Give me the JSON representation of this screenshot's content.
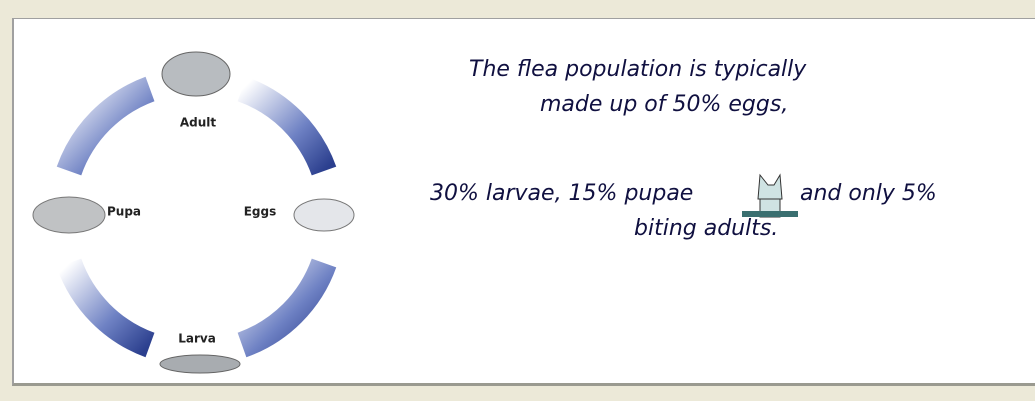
{
  "diagram": {
    "labels": {
      "adult": "Adult",
      "eggs": "Eggs",
      "larva": "Larva",
      "pupa": "Pupa"
    }
  },
  "text": {
    "lines": [
      "The flea population is typically",
      "made up of 50% eggs,",
      "30% larvae, 15% pupae",
      "and only 5%",
      "biting adults."
    ]
  }
}
